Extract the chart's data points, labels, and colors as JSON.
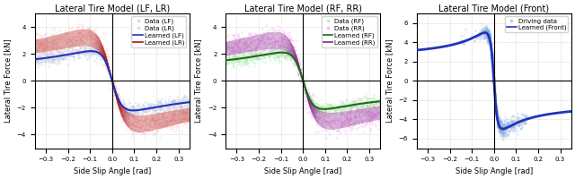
{
  "titles": [
    "Lateral Tire Model (LF, LR)",
    "Lateral Tire Model (RF, RR)",
    "Lateral Tire Model (Front)"
  ],
  "xlabel": "Side Slip Angle [rad]",
  "ylabel": "Lateral Tire Force [kN]",
  "xlim": [
    -0.35,
    0.35
  ],
  "ylim12": [
    -5.0,
    5.0
  ],
  "ylim3": [
    -7.0,
    7.0
  ],
  "yticks12": [
    -4,
    -2,
    0,
    2,
    4
  ],
  "yticks3": [
    -6,
    -4,
    -2,
    0,
    2,
    4,
    6
  ],
  "xticks": [
    -0.3,
    -0.2,
    -0.1,
    0.0,
    0.1,
    0.2,
    0.3
  ],
  "colors": {
    "data_LF": "#AABBDD",
    "data_LR": "#FFAAAA",
    "learned_LF": "#2233BB",
    "learned_LR": "#AA1111",
    "data_RF": "#88EE88",
    "data_RR": "#EE88EE",
    "learned_RF": "#226622",
    "learned_RR": "#882288",
    "data_front": "#88AADD",
    "learned_front": "#2233BB"
  },
  "legend_labels_1": [
    "Data (LF)",
    "Data (LR)",
    "Learned (LF)",
    "Learned (LR)"
  ],
  "legend_labels_2": [
    "Data (RF)",
    "Data (RR)",
    "Learned (RF)",
    "Learned (RR)"
  ],
  "legend_labels_3": [
    "Driving data",
    "Learned (Front)"
  ],
  "scatter_alpha": 0.25,
  "scatter_size": 3,
  "line_width": 1.5,
  "title_fontsize": 7,
  "label_fontsize": 6,
  "tick_fontsize": 5,
  "legend_fontsize": 5
}
